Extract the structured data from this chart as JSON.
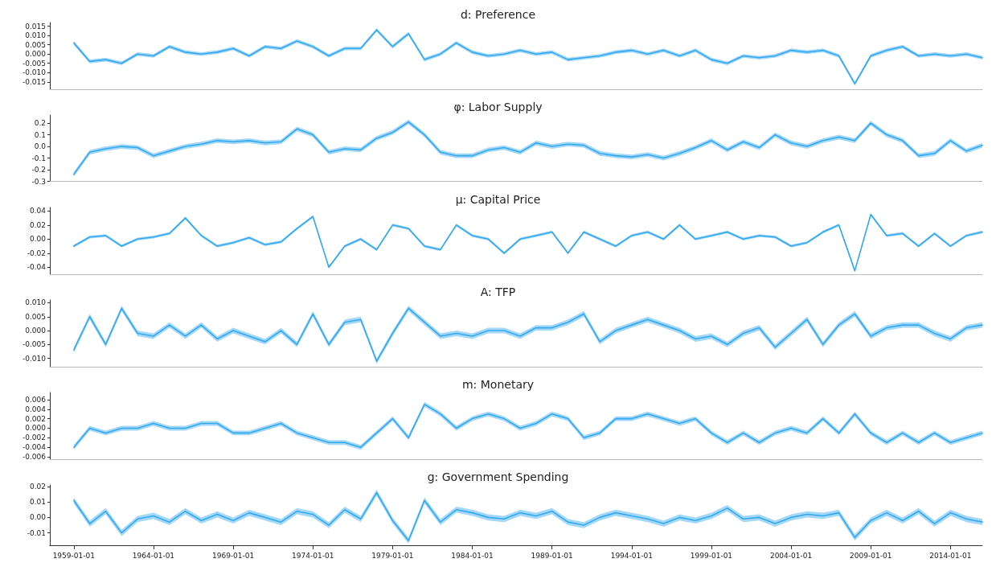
{
  "chart_data": [
    {
      "type": "line",
      "title": "d: Preference",
      "tick_labels": "y",
      "x": [
        "1959",
        "1960",
        "1961",
        "1962",
        "1963",
        "1964",
        "1965",
        "1966",
        "1967",
        "1968",
        "1969",
        "1970",
        "1971",
        "1972",
        "1973",
        "1974",
        "1975",
        "1976",
        "1977",
        "1978",
        "1979",
        "1980",
        "1981",
        "1982",
        "1983",
        "1984",
        "1985",
        "1986",
        "1987",
        "1988",
        "1989",
        "1990",
        "1991",
        "1992",
        "1993",
        "1994",
        "1995",
        "1996",
        "1997",
        "1998",
        "1999",
        "2000",
        "2001",
        "2002",
        "2003",
        "2004",
        "2005",
        "2006",
        "2007",
        "2008",
        "2009",
        "2010",
        "2011",
        "2012",
        "2013",
        "2014",
        "2015",
        "2016"
      ],
      "xlim": [
        "1957-07-01",
        "2016-01-01"
      ],
      "ylim": [
        -0.019,
        0.017
      ],
      "yticks": [
        {
          "value": -0.015,
          "label": "-0.015"
        },
        {
          "value": -0.01,
          "label": "-0.010"
        },
        {
          "value": -0.005,
          "label": "-0.005"
        },
        {
          "value": 0,
          "label": "0.000"
        },
        {
          "value": 0.005,
          "label": "0.005"
        },
        {
          "value": 0.01,
          "label": "0.010"
        },
        {
          "value": 0.015,
          "label": "0.015"
        }
      ],
      "series": [
        {
          "color": "#35a9f0",
          "values": [
            0.006,
            -0.004,
            -0.003,
            -0.005,
            0,
            -0.001,
            0.004,
            0.001,
            0,
            0.001,
            0.003,
            -0.001,
            0.004,
            0.003,
            0.007,
            0.004,
            -0.001,
            0.003,
            0.003,
            0.013,
            0.004,
            0.011,
            -0.003,
            0,
            0.006,
            0.001,
            -0.001,
            0,
            0.002,
            0,
            0.001,
            -0.003,
            -0.002,
            -0.001,
            0.001,
            0.002,
            0,
            0.002,
            -0.001,
            0.002,
            -0.003,
            -0.005,
            -0.001,
            -0.002,
            -0.001,
            0.002,
            0.001,
            0.002,
            -0.001,
            -0.016,
            -0.001,
            0.002,
            0.004,
            -0.001,
            0,
            -0.001,
            0,
            -0.002
          ],
          "lower": [
            0.005,
            -0.005,
            -0.004,
            -0.006,
            -0.001,
            -0.002,
            0.003,
            0,
            -0.001,
            0,
            0.002,
            -0.002,
            0.003,
            0.002,
            0.006,
            0.003,
            -0.002,
            0.002,
            0.002,
            0.012,
            0.003,
            0.01,
            -0.004,
            -0.001,
            0.005,
            0,
            -0.002,
            -0.001,
            0.001,
            -0.001,
            0,
            -0.004,
            -0.003,
            -0.002,
            0,
            0.001,
            -0.001,
            0.001,
            -0.002,
            0.001,
            -0.004,
            -0.006,
            -0.002,
            -0.003,
            -0.002,
            0.001,
            0,
            0.001,
            -0.002,
            -0.017,
            -0.002,
            0.001,
            0.003,
            -0.002,
            -0.001,
            -0.002,
            -0.001,
            -0.003
          ],
          "upper": [
            0.007,
            -0.003,
            -0.002,
            -0.004,
            0.001,
            0,
            0.005,
            0.002,
            0.001,
            0.002,
            0.004,
            0,
            0.005,
            0.004,
            0.008,
            0.005,
            0,
            0.004,
            0.004,
            0.014,
            0.005,
            0.012,
            -0.002,
            0.001,
            0.007,
            0.002,
            0,
            0.001,
            0.003,
            0.001,
            0.002,
            -0.002,
            -0.001,
            0,
            0.002,
            0.003,
            0.001,
            0.003,
            0,
            0.003,
            -0.002,
            -0.004,
            0,
            -0.001,
            0,
            0.003,
            0.002,
            0.003,
            0,
            -0.015,
            0,
            0.003,
            0.005,
            0,
            0.001,
            0,
            0.001,
            -0.001
          ]
        }
      ]
    },
    {
      "type": "line",
      "title": "φ: Labor Supply",
      "tick_labels": "y",
      "x": [
        "1959",
        "1960",
        "1961",
        "1962",
        "1963",
        "1964",
        "1965",
        "1966",
        "1967",
        "1968",
        "1969",
        "1970",
        "1971",
        "1972",
        "1973",
        "1974",
        "1975",
        "1976",
        "1977",
        "1978",
        "1979",
        "1980",
        "1981",
        "1982",
        "1983",
        "1984",
        "1985",
        "1986",
        "1987",
        "1988",
        "1989",
        "1990",
        "1991",
        "1992",
        "1993",
        "1994",
        "1995",
        "1996",
        "1997",
        "1998",
        "1999",
        "2000",
        "2001",
        "2002",
        "2003",
        "2004",
        "2005",
        "2006",
        "2007",
        "2008",
        "2009",
        "2010",
        "2011",
        "2012",
        "2013",
        "2014",
        "2015",
        "2016"
      ],
      "xlim": [
        "1957-07-01",
        "2016-01-01"
      ],
      "ylim": [
        -0.3,
        0.27
      ],
      "yticks": [
        {
          "value": -0.3,
          "label": "-0.3"
        },
        {
          "value": -0.2,
          "label": "-0.2"
        },
        {
          "value": -0.1,
          "label": "-0.1"
        },
        {
          "value": 0,
          "label": "0.0"
        },
        {
          "value": 0.1,
          "label": "0.1"
        },
        {
          "value": 0.2,
          "label": "0.2"
        }
      ],
      "series": [
        {
          "color": "#35a9f0",
          "values": [
            -0.24,
            -0.05,
            -0.02,
            0,
            -0.01,
            -0.08,
            -0.04,
            0,
            0.02,
            0.05,
            0.04,
            0.05,
            0.03,
            0.04,
            0.15,
            0.1,
            -0.05,
            -0.02,
            -0.03,
            0.07,
            0.12,
            0.21,
            0.1,
            -0.05,
            -0.08,
            -0.08,
            -0.03,
            -0.01,
            -0.05,
            0.03,
            0,
            0.02,
            0.01,
            -0.06,
            -0.08,
            -0.09,
            -0.07,
            -0.1,
            -0.06,
            -0.01,
            0.05,
            -0.03,
            0.04,
            -0.01,
            0.1,
            0.03,
            0,
            0.05,
            0.08,
            0.05,
            0.2,
            0.1,
            0.05,
            -0.08,
            -0.06,
            0.05,
            -0.04,
            0.01
          ],
          "lower": [
            -0.26,
            -0.07,
            -0.04,
            -0.02,
            -0.03,
            -0.1,
            -0.06,
            -0.02,
            0,
            0.03,
            0.02,
            0.03,
            0.01,
            0.02,
            0.13,
            0.08,
            -0.07,
            -0.04,
            -0.05,
            0.05,
            0.1,
            0.19,
            0.08,
            -0.07,
            -0.1,
            -0.1,
            -0.05,
            -0.03,
            -0.07,
            0.01,
            -0.02,
            0,
            -0.01,
            -0.08,
            -0.1,
            -0.11,
            -0.09,
            -0.12,
            -0.08,
            -0.03,
            0.03,
            -0.05,
            0.02,
            -0.03,
            0.08,
            0.01,
            -0.02,
            0.03,
            0.06,
            0.03,
            0.18,
            0.08,
            0.03,
            -0.1,
            -0.08,
            0.03,
            -0.06,
            -0.01
          ],
          "upper": [
            -0.22,
            -0.03,
            0,
            0.02,
            0.01,
            -0.06,
            -0.02,
            0.02,
            0.04,
            0.07,
            0.06,
            0.07,
            0.05,
            0.06,
            0.17,
            0.12,
            -0.03,
            0,
            -0.01,
            0.09,
            0.14,
            0.23,
            0.12,
            -0.03,
            -0.06,
            -0.06,
            -0.01,
            0.01,
            -0.03,
            0.05,
            0.02,
            0.04,
            0.03,
            -0.04,
            -0.06,
            -0.07,
            -0.05,
            -0.08,
            -0.04,
            0.01,
            0.07,
            -0.01,
            0.06,
            0.01,
            0.12,
            0.05,
            0.02,
            0.07,
            0.1,
            0.07,
            0.22,
            0.12,
            0.07,
            -0.06,
            -0.04,
            0.07,
            -0.02,
            0.03
          ]
        }
      ]
    },
    {
      "type": "line",
      "title": "μ: Capital Price",
      "tick_labels": "y",
      "x": [
        "1959",
        "1960",
        "1961",
        "1962",
        "1963",
        "1964",
        "1965",
        "1966",
        "1967",
        "1968",
        "1969",
        "1970",
        "1971",
        "1972",
        "1973",
        "1974",
        "1975",
        "1976",
        "1977",
        "1978",
        "1979",
        "1980",
        "1981",
        "1982",
        "1983",
        "1984",
        "1985",
        "1986",
        "1987",
        "1988",
        "1989",
        "1990",
        "1991",
        "1992",
        "1993",
        "1994",
        "1995",
        "1996",
        "1997",
        "1998",
        "1999",
        "2000",
        "2001",
        "2002",
        "2003",
        "2004",
        "2005",
        "2006",
        "2007",
        "2008",
        "2009",
        "2010",
        "2011",
        "2012",
        "2013",
        "2014",
        "2015",
        "2016"
      ],
      "xlim": [
        "1957-07-01",
        "2016-01-01"
      ],
      "ylim": [
        -0.05,
        0.045
      ],
      "yticks": [
        {
          "value": -0.04,
          "label": "-0.04"
        },
        {
          "value": -0.02,
          "label": "-0.02"
        },
        {
          "value": 0,
          "label": "0.00"
        },
        {
          "value": 0.02,
          "label": "0.02"
        },
        {
          "value": 0.04,
          "label": "0.04"
        }
      ],
      "series": [
        {
          "color": "#35a9f0",
          "values": [
            -0.01,
            0.003,
            0.005,
            -0.01,
            0,
            0.003,
            0.008,
            0.03,
            0.005,
            -0.01,
            -0.005,
            0.002,
            -0.008,
            -0.004,
            0.015,
            0.032,
            -0.04,
            -0.01,
            0,
            -0.015,
            0.02,
            0.015,
            -0.01,
            -0.015,
            0.02,
            0.005,
            0,
            -0.02,
            0,
            0.005,
            0.01,
            -0.02,
            0.01,
            0,
            -0.01,
            0.005,
            0.01,
            0,
            0.02,
            0,
            0.005,
            0.01,
            0,
            0.005,
            0.003,
            -0.01,
            -0.005,
            0.01,
            0.02,
            -0.045,
            0.035,
            0.005,
            0.008,
            -0.01,
            0.008,
            -0.01,
            0.005,
            0.01
          ],
          "lower": [
            -0.012,
            0.001,
            0.003,
            -0.012,
            -0.002,
            0.001,
            0.006,
            0.028,
            0.003,
            -0.012,
            -0.007,
            0,
            -0.01,
            -0.006,
            0.013,
            0.03,
            -0.042,
            -0.012,
            -0.002,
            -0.017,
            0.018,
            0.013,
            -0.012,
            -0.017,
            0.018,
            0.003,
            -0.002,
            -0.022,
            -0.002,
            0.003,
            0.008,
            -0.022,
            0.008,
            -0.002,
            -0.012,
            0.003,
            0.008,
            -0.002,
            0.018,
            -0.002,
            0.003,
            0.008,
            -0.002,
            0.003,
            0.001,
            -0.012,
            -0.007,
            0.008,
            0.018,
            -0.047,
            0.033,
            0.003,
            0.006,
            -0.012,
            0.006,
            -0.012,
            0.003,
            0.008
          ],
          "upper": [
            -0.008,
            0.005,
            0.007,
            -0.008,
            0.002,
            0.005,
            0.01,
            0.032,
            0.007,
            -0.008,
            -0.003,
            0.004,
            -0.006,
            -0.002,
            0.017,
            0.034,
            -0.038,
            -0.008,
            0.002,
            -0.013,
            0.022,
            0.017,
            -0.008,
            -0.013,
            0.022,
            0.007,
            0.002,
            -0.018,
            0.002,
            0.007,
            0.012,
            -0.018,
            0.012,
            0.002,
            -0.008,
            0.007,
            0.012,
            0.002,
            0.022,
            0.002,
            0.007,
            0.012,
            0.002,
            0.007,
            0.005,
            -0.008,
            -0.003,
            0.012,
            0.022,
            -0.043,
            0.037,
            0.007,
            0.01,
            -0.008,
            0.01,
            -0.008,
            0.007,
            0.012
          ]
        }
      ]
    },
    {
      "type": "line",
      "title": "A: TFP",
      "tick_labels": "y",
      "x": [
        "1959",
        "1960",
        "1961",
        "1962",
        "1963",
        "1964",
        "1965",
        "1966",
        "1967",
        "1968",
        "1969",
        "1970",
        "1971",
        "1972",
        "1973",
        "1974",
        "1975",
        "1976",
        "1977",
        "1978",
        "1979",
        "1980",
        "1981",
        "1982",
        "1983",
        "1984",
        "1985",
        "1986",
        "1987",
        "1988",
        "1989",
        "1990",
        "1991",
        "1992",
        "1993",
        "1994",
        "1995",
        "1996",
        "1997",
        "1998",
        "1999",
        "2000",
        "2001",
        "2002",
        "2003",
        "2004",
        "2005",
        "2006",
        "2007",
        "2008",
        "2009",
        "2010",
        "2011",
        "2012",
        "2013",
        "2014",
        "2015",
        "2016"
      ],
      "xlim": [
        "1957-07-01",
        "2016-01-01"
      ],
      "ylim": [
        -0.013,
        0.011
      ],
      "yticks": [
        {
          "value": -0.01,
          "label": "-0.010"
        },
        {
          "value": -0.005,
          "label": "-0.005"
        },
        {
          "value": 0,
          "label": "0.000"
        },
        {
          "value": 0.005,
          "label": "0.005"
        },
        {
          "value": 0.01,
          "label": "0.010"
        }
      ],
      "series": [
        {
          "color": "#35a9f0",
          "values": [
            -0.007,
            0.005,
            -0.005,
            0.008,
            -0.001,
            -0.002,
            0.002,
            -0.002,
            0.002,
            -0.003,
            0,
            -0.002,
            -0.004,
            0,
            -0.005,
            0.006,
            -0.005,
            0.003,
            0.004,
            -0.011,
            -0.001,
            0.008,
            0.003,
            -0.002,
            -0.001,
            -0.002,
            0,
            0,
            -0.002,
            0.001,
            0.001,
            0.003,
            0.006,
            -0.004,
            0,
            0.002,
            0.004,
            0.002,
            0,
            -0.003,
            -0.002,
            -0.005,
            -0.001,
            0.001,
            -0.006,
            -0.001,
            0.004,
            -0.005,
            0.002,
            0.006,
            -0.002,
            0.001,
            0.002,
            0.002,
            -0.001,
            -0.003,
            0.001,
            0.002
          ],
          "lower": [
            -0.008,
            0.004,
            -0.006,
            0.007,
            -0.002,
            -0.003,
            0.001,
            -0.003,
            0.001,
            -0.004,
            -0.001,
            -0.003,
            -0.005,
            -0.001,
            -0.006,
            0.005,
            -0.006,
            0.002,
            0.003,
            -0.012,
            -0.002,
            0.007,
            0.002,
            -0.003,
            -0.002,
            -0.003,
            -0.001,
            -0.001,
            -0.003,
            0,
            0,
            0.002,
            0.005,
            -0.005,
            -0.001,
            0.001,
            0.003,
            0.001,
            -0.001,
            -0.004,
            -0.003,
            -0.006,
            -0.002,
            0,
            -0.007,
            -0.002,
            0.003,
            -0.006,
            0.001,
            0.005,
            -0.003,
            0,
            0.001,
            0.001,
            -0.002,
            -0.004,
            0,
            0.001
          ],
          "upper": [
            -0.006,
            0.006,
            -0.004,
            0.009,
            0,
            -0.001,
            0.003,
            -0.001,
            0.003,
            -0.002,
            0.001,
            -0.001,
            -0.003,
            0.001,
            -0.004,
            0.007,
            -0.004,
            0.004,
            0.005,
            -0.01,
            0,
            0.009,
            0.004,
            -0.001,
            0,
            -0.001,
            0.001,
            0.001,
            -0.001,
            0.002,
            0.002,
            0.004,
            0.007,
            -0.003,
            0.001,
            0.003,
            0.005,
            0.003,
            0.001,
            -0.002,
            -0.001,
            -0.004,
            0,
            0.002,
            -0.005,
            0,
            0.005,
            -0.004,
            0.003,
            0.007,
            -0.001,
            0.002,
            0.003,
            0.003,
            0,
            -0.002,
            0.002,
            0.003
          ]
        }
      ]
    },
    {
      "type": "line",
      "title": "m: Monetary",
      "tick_labels": "y",
      "x": [
        "1959",
        "1960",
        "1961",
        "1962",
        "1963",
        "1964",
        "1965",
        "1966",
        "1967",
        "1968",
        "1969",
        "1970",
        "1971",
        "1972",
        "1973",
        "1974",
        "1975",
        "1976",
        "1977",
        "1978",
        "1979",
        "1980",
        "1981",
        "1982",
        "1983",
        "1984",
        "1985",
        "1986",
        "1987",
        "1988",
        "1989",
        "1990",
        "1991",
        "1992",
        "1993",
        "1994",
        "1995",
        "1996",
        "1997",
        "1998",
        "1999",
        "2000",
        "2001",
        "2002",
        "2003",
        "2004",
        "2005",
        "2006",
        "2007",
        "2008",
        "2009",
        "2010",
        "2011",
        "2012",
        "2013",
        "2014",
        "2015",
        "2016"
      ],
      "xlim": [
        "1957-07-01",
        "2016-01-01"
      ],
      "ylim": [
        -0.0065,
        0.0075
      ],
      "yticks": [
        {
          "value": -0.006,
          "label": "-0.006"
        },
        {
          "value": -0.004,
          "label": "-0.004"
        },
        {
          "value": -0.002,
          "label": "-0.002"
        },
        {
          "value": 0,
          "label": "0.000"
        },
        {
          "value": 0.002,
          "label": "0.002"
        },
        {
          "value": 0.004,
          "label": "0.004"
        },
        {
          "value": 0.006,
          "label": "0.006"
        }
      ],
      "series": [
        {
          "color": "#35a9f0",
          "values": [
            -0.004,
            0,
            -0.001,
            0,
            0,
            0.001,
            0,
            0,
            0.001,
            0.001,
            -0.001,
            -0.001,
            0,
            0.001,
            -0.001,
            -0.002,
            -0.003,
            -0.003,
            -0.004,
            -0.001,
            0.002,
            -0.002,
            0.005,
            0.003,
            0,
            0.002,
            0.003,
            0.002,
            0,
            0.001,
            0.003,
            0.002,
            -0.002,
            -0.001,
            0.002,
            0.002,
            0.003,
            0.002,
            0.001,
            0.002,
            -0.001,
            -0.003,
            -0.001,
            -0.003,
            -0.001,
            0,
            -0.001,
            0.002,
            -0.001,
            0.003,
            -0.001,
            -0.003,
            -0.001,
            -0.003,
            -0.001,
            -0.003,
            -0.002,
            -0.001
          ],
          "lower": [
            -0.0045,
            -0.0005,
            -0.0015,
            -0.0005,
            -0.0005,
            0.0005,
            -0.0005,
            -0.0005,
            0.0005,
            0.0005,
            -0.0015,
            -0.0015,
            -0.0005,
            0.0005,
            -0.0015,
            -0.0025,
            -0.0035,
            -0.0035,
            -0.0045,
            -0.0015,
            0.0015,
            -0.0025,
            0.0045,
            0.0025,
            -0.0005,
            0.0015,
            0.0025,
            0.0015,
            -0.0005,
            0.0005,
            0.0025,
            0.0015,
            -0.0025,
            -0.0015,
            0.0015,
            0.0015,
            0.0025,
            0.0015,
            0.0005,
            0.0015,
            -0.0015,
            -0.0035,
            -0.0015,
            -0.0035,
            -0.0015,
            -0.0005,
            -0.0015,
            0.0015,
            -0.0015,
            0.0025,
            -0.0015,
            -0.0035,
            -0.0015,
            -0.0035,
            -0.0015,
            -0.0035,
            -0.0025,
            -0.0015
          ],
          "upper": [
            -0.0035,
            0.0005,
            -0.0005,
            0.0005,
            0.0005,
            0.0015,
            0.0005,
            0.0005,
            0.0015,
            0.0015,
            -0.0005,
            -0.0005,
            0.0005,
            0.0015,
            -0.0005,
            -0.0015,
            -0.0025,
            -0.0025,
            -0.0035,
            -0.0005,
            0.0025,
            -0.0015,
            0.0055,
            0.0035,
            0.0005,
            0.0025,
            0.0035,
            0.0025,
            0.0005,
            0.0015,
            0.0035,
            0.0025,
            -0.0015,
            -0.0005,
            0.0025,
            0.0025,
            0.0035,
            0.0025,
            0.0015,
            0.0025,
            -0.0005,
            -0.0025,
            -0.0005,
            -0.0025,
            -0.0005,
            0.0005,
            -0.0005,
            0.0025,
            -0.0005,
            0.0035,
            -0.0005,
            -0.0025,
            -0.0005,
            -0.0025,
            -0.0005,
            -0.0025,
            -0.0015,
            -0.0005
          ]
        }
      ]
    },
    {
      "type": "line",
      "title": "g: Government Spending",
      "x": [
        "1959",
        "1960",
        "1961",
        "1962",
        "1963",
        "1964",
        "1965",
        "1966",
        "1967",
        "1968",
        "1969",
        "1970",
        "1971",
        "1972",
        "1973",
        "1974",
        "1975",
        "1976",
        "1977",
        "1978",
        "1979",
        "1980",
        "1981",
        "1982",
        "1983",
        "1984",
        "1985",
        "1986",
        "1987",
        "1988",
        "1989",
        "1990",
        "1991",
        "1992",
        "1993",
        "1994",
        "1995",
        "1996",
        "1997",
        "1998",
        "1999",
        "2000",
        "2001",
        "2002",
        "2003",
        "2004",
        "2005",
        "2006",
        "2007",
        "2008",
        "2009",
        "2010",
        "2011",
        "2012",
        "2013",
        "2014",
        "2015",
        "2016"
      ],
      "xlim": [
        "1957-07-01",
        "2016-01-01"
      ],
      "xticks": [
        {
          "value": "1959-01-01",
          "label": "1959-01-01"
        },
        {
          "value": "1964-01-01",
          "label": "1964-01-01"
        },
        {
          "value": "1969-01-01",
          "label": "1969-01-01"
        },
        {
          "value": "1974-01-01",
          "label": "1974-01-01"
        },
        {
          "value": "1979-01-01",
          "label": "1979-01-01"
        },
        {
          "value": "1984-01-01",
          "label": "1984-01-01"
        },
        {
          "value": "1989-01-01",
          "label": "1989-01-01"
        },
        {
          "value": "1994-01-01",
          "label": "1994-01-01"
        },
        {
          "value": "1999-01-01",
          "label": "1999-01-01"
        },
        {
          "value": "2004-01-01",
          "label": "2004-01-01"
        },
        {
          "value": "2009-01-01",
          "label": "2009-01-01"
        },
        {
          "value": "2014-01-01",
          "label": "2014-01-01"
        }
      ],
      "ylim": [
        -0.018,
        0.021
      ],
      "yticks": [
        {
          "value": -0.01,
          "label": "-0.01"
        },
        {
          "value": 0,
          "label": "0.00"
        },
        {
          "value": 0.01,
          "label": "0.01"
        },
        {
          "value": 0.02,
          "label": "0.02"
        }
      ],
      "series": [
        {
          "color": "#35a9f0",
          "values": [
            0.011,
            -0.004,
            0.004,
            -0.01,
            -0.001,
            0.001,
            -0.003,
            0.004,
            -0.002,
            0.002,
            -0.002,
            0.003,
            0,
            -0.003,
            0.004,
            0.002,
            -0.005,
            0.005,
            -0.001,
            0.016,
            -0.002,
            -0.015,
            0.011,
            -0.003,
            0.005,
            0.003,
            0,
            -0.001,
            0.003,
            0.001,
            0.004,
            -0.003,
            -0.005,
            0,
            0.003,
            0.001,
            -0.001,
            -0.004,
            0,
            -0.002,
            0.001,
            0.006,
            -0.001,
            0,
            -0.004,
            0,
            0.002,
            0.001,
            0.003,
            -0.013,
            -0.002,
            0.003,
            -0.002,
            0.004,
            -0.004,
            0.003,
            -0.001,
            -0.003
          ],
          "lower": [
            0.009,
            -0.006,
            0.002,
            -0.012,
            -0.003,
            -0.001,
            -0.005,
            0.002,
            -0.004,
            0,
            -0.004,
            0.001,
            -0.002,
            -0.005,
            0.002,
            0,
            -0.007,
            0.003,
            -0.003,
            0.014,
            -0.004,
            -0.017,
            0.009,
            -0.005,
            0.003,
            0.001,
            -0.002,
            -0.003,
            0.001,
            -0.001,
            0.002,
            -0.005,
            -0.007,
            -0.002,
            0.001,
            -0.001,
            -0.003,
            -0.006,
            -0.002,
            -0.004,
            -0.001,
            0.004,
            -0.003,
            -0.002,
            -0.006,
            -0.002,
            0,
            -0.001,
            0.001,
            -0.015,
            -0.004,
            0.001,
            -0.004,
            0.002,
            -0.006,
            0.001,
            -0.003,
            -0.005
          ],
          "upper": [
            0.013,
            -0.002,
            0.006,
            -0.008,
            0.001,
            0.003,
            -0.001,
            0.006,
            0,
            0.004,
            0,
            0.005,
            0.002,
            -0.001,
            0.006,
            0.004,
            -0.003,
            0.007,
            0.001,
            0.018,
            0,
            -0.013,
            0.013,
            -0.001,
            0.007,
            0.005,
            0.002,
            0.001,
            0.005,
            0.003,
            0.006,
            -0.001,
            -0.003,
            0.002,
            0.005,
            0.003,
            0.001,
            -0.002,
            0.002,
            0,
            0.003,
            0.008,
            0.001,
            0.002,
            -0.002,
            0.002,
            0.004,
            0.003,
            0.005,
            -0.011,
            0,
            0.005,
            0,
            0.006,
            -0.002,
            0.005,
            0.001,
            -0.001
          ]
        }
      ]
    }
  ]
}
